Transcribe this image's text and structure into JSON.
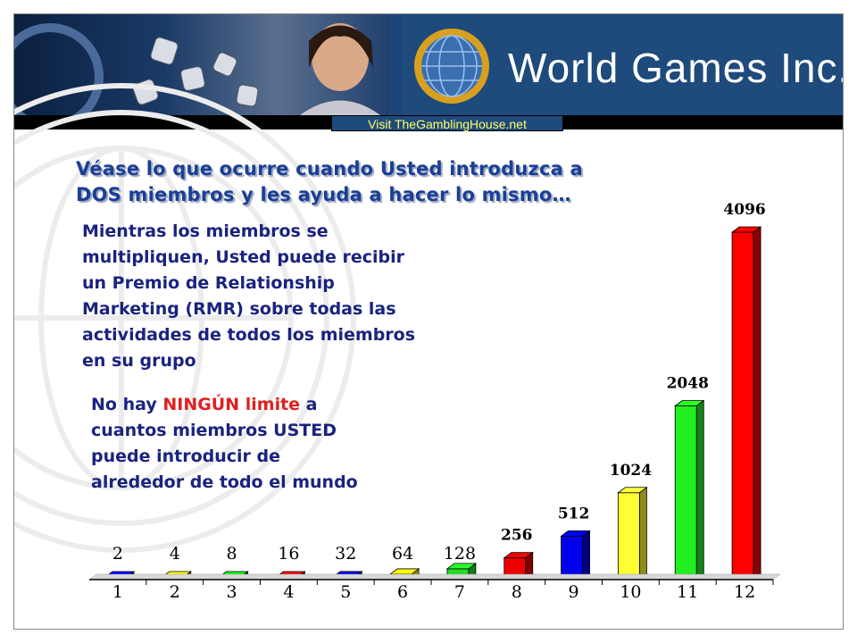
{
  "banner": {
    "logo_text": "World Games Inc.",
    "link_text": "Visit TheGamblingHouse.net"
  },
  "headline": {
    "line1": "Véase lo que ocurre cuando Usted introduzca a",
    "line2": "DOS miembros y les ayuda a hacer lo mismo…"
  },
  "paragraph1": [
    "Mientras los miembros se",
    "multipliquen, Usted puede recibir",
    "un Premio de Relationship",
    "Marketing (RMR) sobre todas las",
    "actividades de todos los miembros",
    "en su grupo"
  ],
  "paragraph2": {
    "line1_before": "No hay ",
    "line1_emph": "NINGÚN limite",
    "line1_after": " a",
    "line2": "cuantos miembros USTED",
    "line3": "puede introducir de",
    "line4": "alrededor de todo el mundo"
  },
  "colors": {
    "headline": "#1a3f95",
    "body_text": "#1a237e",
    "emphasis": "#e02020",
    "banner": "#1e4a7c",
    "link_text": "#ffff66"
  },
  "chart_data": {
    "type": "bar",
    "style": "3d",
    "categories": [
      "1",
      "2",
      "3",
      "4",
      "5",
      "6",
      "7",
      "8",
      "9",
      "10",
      "11",
      "12"
    ],
    "values": [
      2,
      4,
      8,
      16,
      32,
      64,
      128,
      256,
      512,
      1024,
      2048,
      4096
    ],
    "data_labels": [
      "2",
      "4",
      "8",
      "16",
      "32",
      "64",
      "128",
      "256",
      "512",
      "1024",
      "2048",
      "4096"
    ],
    "bar_colors": [
      "#0000ee",
      "#cccc00",
      "#00cc00",
      "#ee0000",
      "#0000ee",
      "#ffff00",
      "#22dd22",
      "#ee0000",
      "#0000ee",
      "#ffff33",
      "#22ee22",
      "#ff0000"
    ],
    "ylim": [
      0,
      4096
    ],
    "grid": false,
    "legend": "none",
    "title": "",
    "xlabel": "",
    "ylabel": ""
  }
}
